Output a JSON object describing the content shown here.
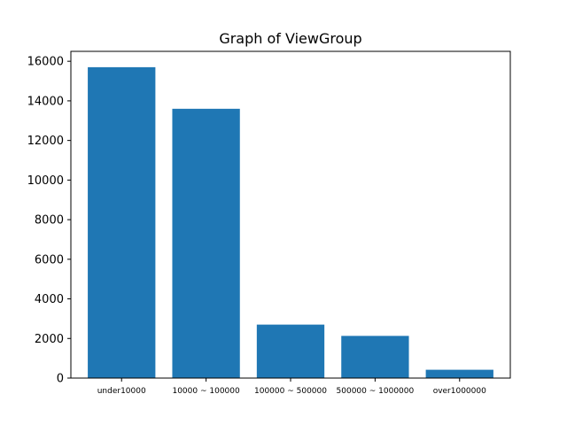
{
  "chart_data": {
    "type": "bar",
    "title": "Graph of ViewGroup",
    "xlabel": "",
    "ylabel": "",
    "categories": [
      "under10000",
      "10000 ~ 100000",
      "100000 ~ 500000",
      "500000 ~ 1000000",
      "over1000000"
    ],
    "values": [
      15700,
      13600,
      2700,
      2130,
      420
    ],
    "ylim": [
      0,
      16500
    ],
    "yticks": [
      0,
      2000,
      4000,
      6000,
      8000,
      10000,
      12000,
      14000,
      16000
    ],
    "ytick_labels": [
      "0",
      "2000",
      "4000",
      "6000",
      "8000",
      "10000",
      "12000",
      "14000",
      "16000"
    ],
    "bar_color": "#1f77b4",
    "grid": false,
    "legend": "none"
  }
}
